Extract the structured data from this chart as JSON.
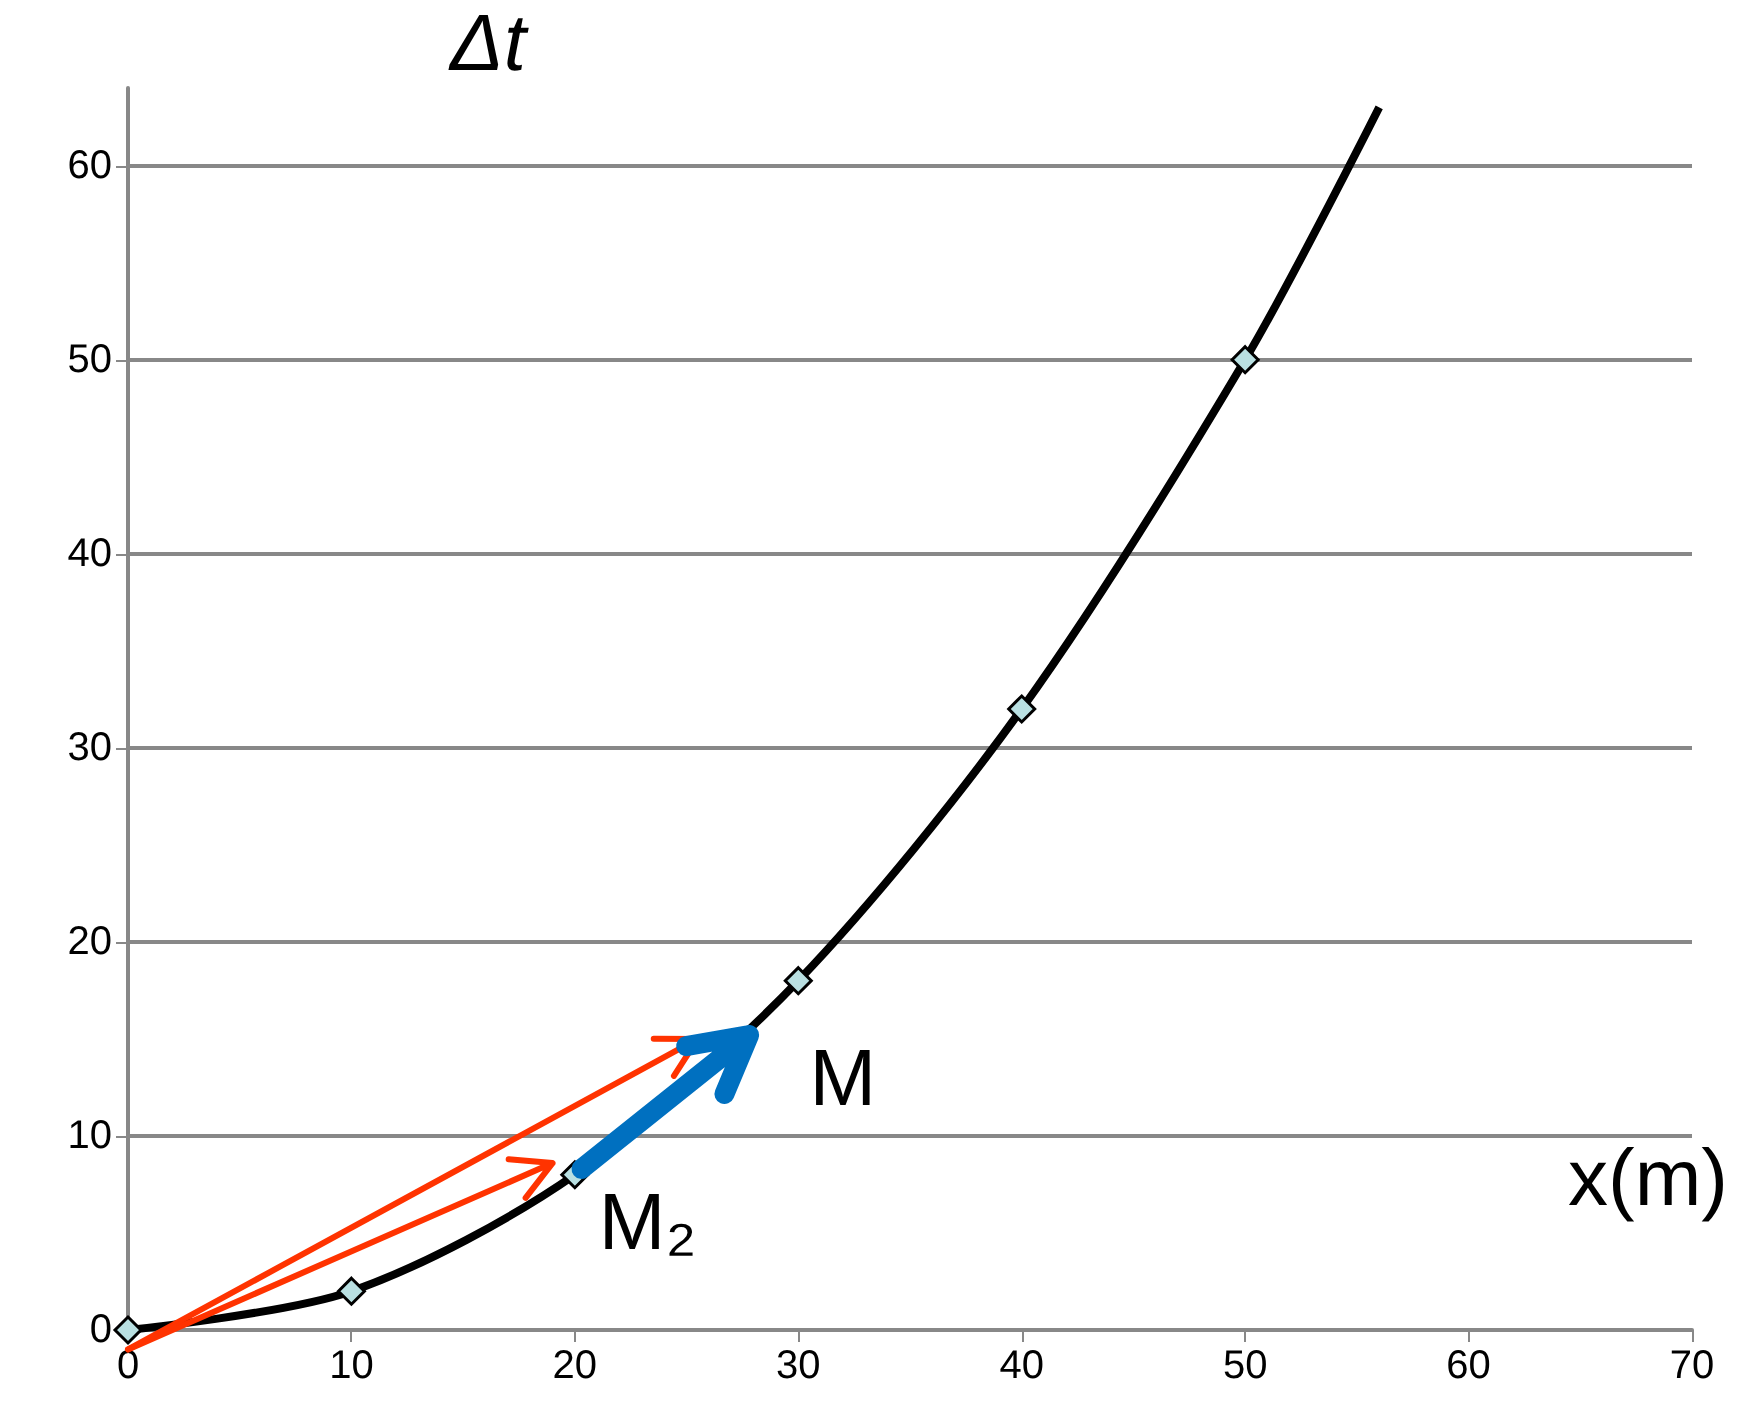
{
  "chart_data": {
    "type": "line",
    "xlabel": "x(m)",
    "ylabel": "Δt",
    "x": [
      0,
      10,
      20,
      30,
      40,
      50,
      56
    ],
    "series": [
      {
        "color": "#000000",
        "values": [
          0,
          2,
          8,
          18,
          32,
          50,
          63
        ]
      }
    ],
    "xlim": [
      0,
      70
    ],
    "xticks": [
      0,
      10,
      20,
      30,
      40,
      50,
      60,
      70
    ],
    "ylim": [
      0,
      64
    ],
    "yticks": [
      0,
      10,
      20,
      30,
      40,
      50,
      60
    ],
    "grid": "y",
    "marker": "diamond",
    "line_style": "solid",
    "annotations": [
      "M",
      {
        "text": "M₂",
        "x": 20,
        "y": 8
      }
    ]
  }
}
